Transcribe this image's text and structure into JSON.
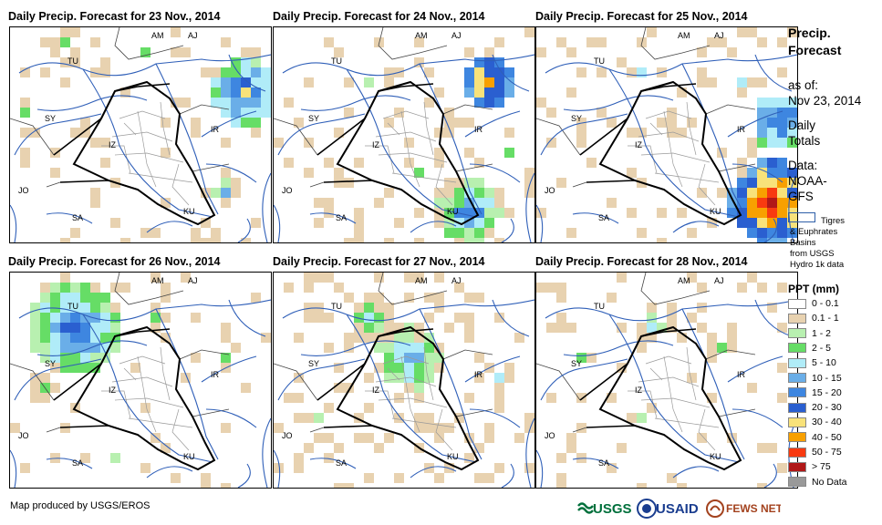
{
  "panels": [
    {
      "title": "Daily Precip. Forecast for 23 Nov., 2014"
    },
    {
      "title": "Daily Precip. Forecast for 24 Nov., 2014"
    },
    {
      "title": "Daily Precip. Forecast for 25 Nov., 2014"
    },
    {
      "title": "Daily Precip. Forecast for 26 Nov., 2014"
    },
    {
      "title": "Daily Precip. Forecast for 27 Nov., 2014"
    },
    {
      "title": "Daily Precip. Forecast for 28 Nov., 2014"
    }
  ],
  "map_labels": [
    "AM",
    "AJ",
    "TU",
    "SY",
    "IZ",
    "IR",
    "JO",
    "SA",
    "KU"
  ],
  "sidebar": {
    "title_line1": "Precip.",
    "title_line2": "Forecast",
    "asof_line1": "as of:",
    "asof_line2": "Nov 23, 2014",
    "daily_line1": "Daily",
    "daily_line2": "Totals",
    "data_line1": "Data:",
    "data_line2": "NOAA-",
    "data_line3": "GFS",
    "basin_line1": "Tigres",
    "basin_line2": "& Euphrates",
    "basin_line3": "Basins",
    "basin_line4": "from USGS",
    "basin_line5": "Hydro 1k data"
  },
  "legend": {
    "title": "PPT (mm)",
    "items": [
      {
        "label": "0 - 0.1",
        "color": "#ffffff"
      },
      {
        "label": "0.1 - 1",
        "color": "#e8d2b0"
      },
      {
        "label": "1 - 2",
        "color": "#b8f0b0"
      },
      {
        "label": "2 - 5",
        "color": "#66dd66"
      },
      {
        "label": "5 - 10",
        "color": "#b0ecf8"
      },
      {
        "label": "10 - 15",
        "color": "#6aaee8"
      },
      {
        "label": "15 - 20",
        "color": "#3e86e0"
      },
      {
        "label": "20 - 30",
        "color": "#2a5fd0"
      },
      {
        "label": "30 - 40",
        "color": "#f8e27a"
      },
      {
        "label": "40 - 50",
        "color": "#f8a000"
      },
      {
        "label": "50 - 75",
        "color": "#f83a10"
      },
      {
        "label": "> 75",
        "color": "#b01818"
      },
      {
        "label": "No Data",
        "color": "#999999"
      }
    ]
  },
  "footer": {
    "credit": "Map produced by USGS/EROS",
    "logo_usgs": "USGS",
    "logo_usaid": "USAID",
    "logo_fewsnet": "FEWS NET"
  }
}
